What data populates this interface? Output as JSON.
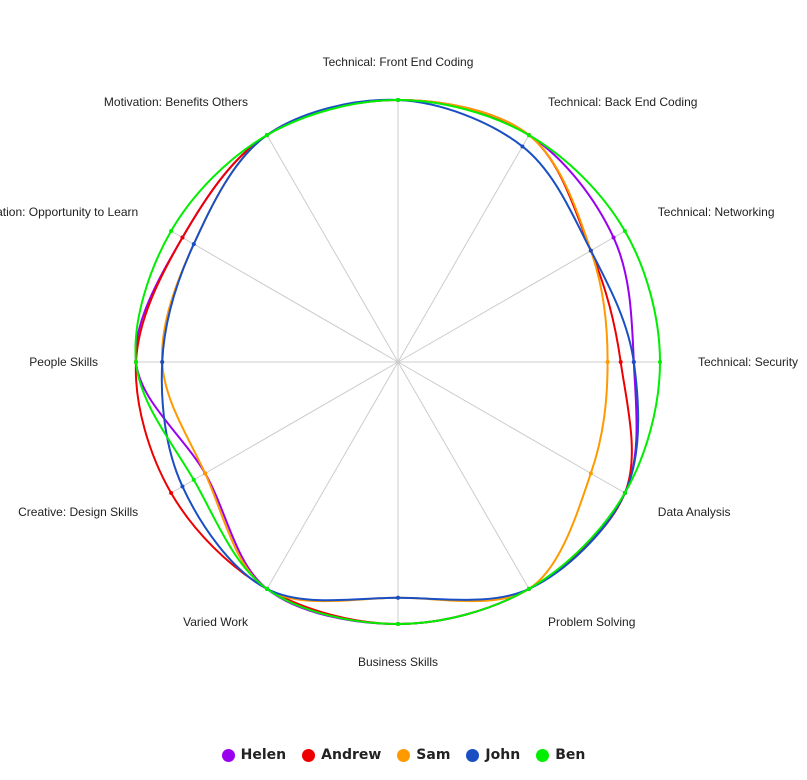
{
  "chart_data": {
    "type": "radar",
    "axes": [
      "Technical: Front End Coding",
      "Technical: Back End Coding",
      "Technical: Networking",
      "Technical: Security",
      "Data Analysis",
      "Problem Solving",
      "Business Skills",
      "Varied Work",
      "Creative: Design Skills",
      "People Skills",
      "Motivation: Opportunity to Learn",
      "Motivation: Benefits Others"
    ],
    "rmax": 10,
    "series": [
      {
        "name": "Helen",
        "color": "#9900ee",
        "values": [
          10,
          10,
          9.5,
          9,
          10,
          10,
          10,
          10,
          8.5,
          10,
          9.5,
          10
        ]
      },
      {
        "name": "Andrew",
        "color": "#ee0000",
        "values": [
          10,
          10,
          8.5,
          8.5,
          10,
          10,
          10,
          10,
          10,
          10,
          9.5,
          10
        ]
      },
      {
        "name": "Sam",
        "color": "#ff9900",
        "values": [
          10,
          10,
          8.5,
          8,
          8.5,
          10,
          9,
          10,
          8.5,
          9,
          9,
          10
        ]
      },
      {
        "name": "John",
        "color": "#1a4fc4",
        "values": [
          10,
          9.5,
          8.5,
          9,
          10,
          10,
          9,
          10,
          9.5,
          9,
          9,
          10
        ]
      },
      {
        "name": "Ben",
        "color": "#00ee00",
        "values": [
          10,
          10,
          10,
          10,
          10,
          10,
          10,
          10,
          9,
          10,
          10,
          10
        ]
      }
    ],
    "legend_position": "bottom",
    "grid": true
  }
}
